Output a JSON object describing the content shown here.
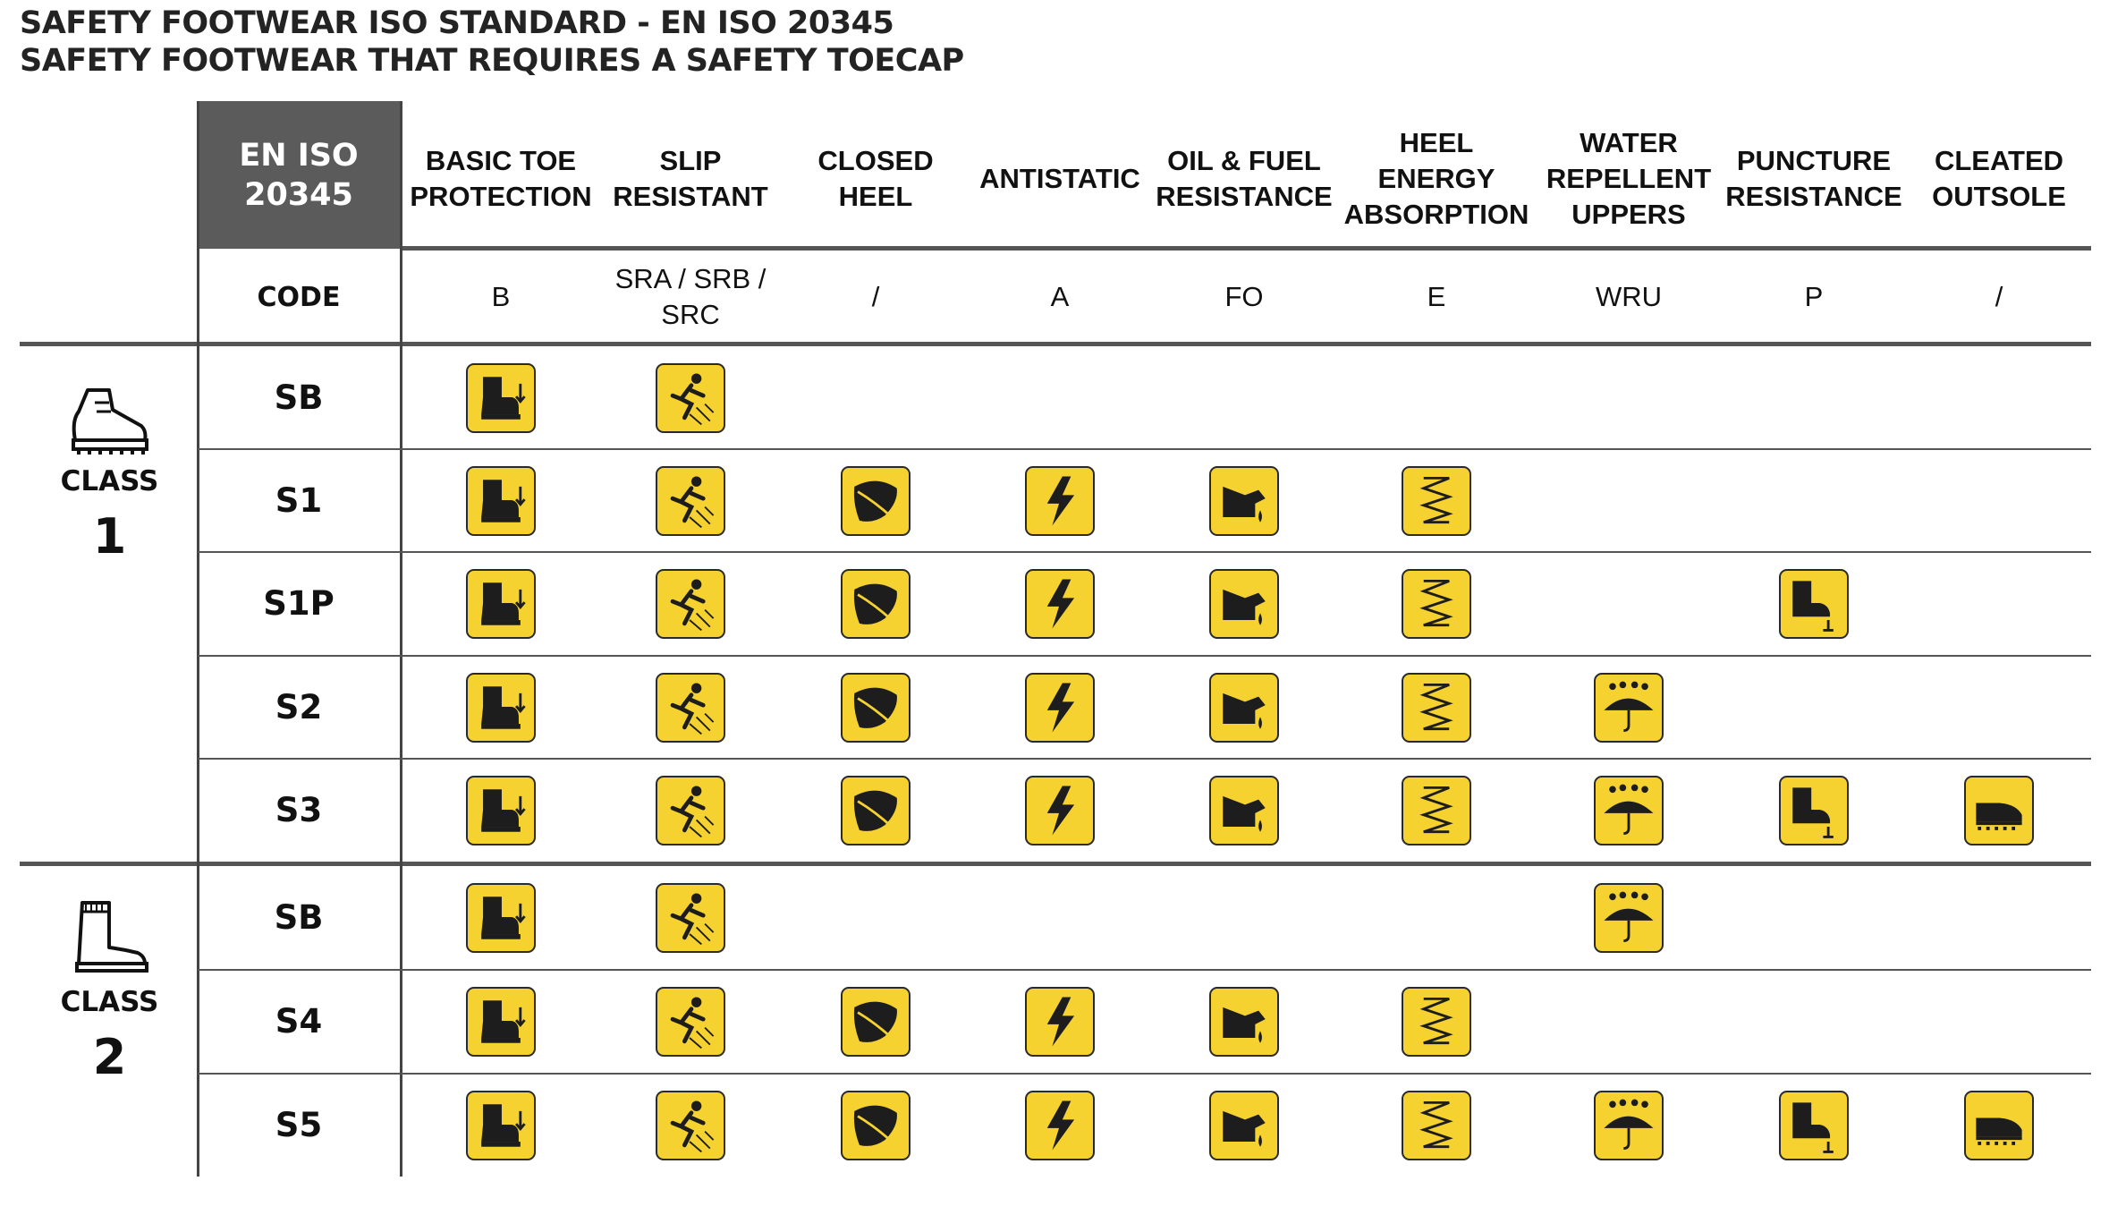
{
  "title": {
    "line1": "SAFETY FOOTWEAR ISO STANDARD - EN ISO 20345",
    "line2": "SAFETY FOOTWEAR THAT REQUIRES A SAFETY TOECAP"
  },
  "table": {
    "header_label": "EN ISO\n20345",
    "code_label": "CODE",
    "columns": [
      {
        "key": "toe",
        "name": "BASIC TOE\nPROTECTION",
        "code": "B",
        "icon": "boot-toecap-icon"
      },
      {
        "key": "slip",
        "name": "SLIP\nRESISTANT",
        "code": "SRA / SRB /\nSRC",
        "icon": "slipping-person-icon"
      },
      {
        "key": "heel",
        "name": "CLOSED\nHEEL",
        "code": "/",
        "icon": "closed-heel-icon"
      },
      {
        "key": "anti",
        "name": "ANTISTATIC",
        "code": "A",
        "icon": "lightning-bolt-icon"
      },
      {
        "key": "oil",
        "name": "OIL & FUEL\nRESISTANCE",
        "code": "FO",
        "icon": "oil-can-icon"
      },
      {
        "key": "energy",
        "name": "HEEL\nENERGY\nABSORPTION",
        "code": "E",
        "icon": "spring-icon"
      },
      {
        "key": "water",
        "name": "WATER\nREPELLENT\nUPPERS",
        "code": "WRU",
        "icon": "umbrella-rain-icon"
      },
      {
        "key": "punct",
        "name": "PUNCTURE\nRESISTANCE",
        "code": "P",
        "icon": "boot-nail-icon"
      },
      {
        "key": "cleat",
        "name": "CLEATED\nOUTSOLE",
        "code": "/",
        "icon": "cleated-shoe-icon"
      }
    ],
    "classes": [
      {
        "label": "CLASS",
        "number": "1",
        "icon": "hiking-boot-icon",
        "rows": [
          {
            "code": "SB",
            "features": [
              "toe",
              "slip"
            ]
          },
          {
            "code": "S1",
            "features": [
              "toe",
              "slip",
              "heel",
              "anti",
              "oil",
              "energy"
            ]
          },
          {
            "code": "S1P",
            "features": [
              "toe",
              "slip",
              "heel",
              "anti",
              "oil",
              "energy",
              "punct"
            ]
          },
          {
            "code": "S2",
            "features": [
              "toe",
              "slip",
              "heel",
              "anti",
              "oil",
              "energy",
              "water"
            ]
          },
          {
            "code": "S3",
            "features": [
              "toe",
              "slip",
              "heel",
              "anti",
              "oil",
              "energy",
              "water",
              "punct",
              "cleat"
            ]
          }
        ]
      },
      {
        "label": "CLASS",
        "number": "2",
        "icon": "rubber-boot-icon",
        "rows": [
          {
            "code": "SB",
            "features": [
              "toe",
              "slip",
              "water"
            ]
          },
          {
            "code": "S4",
            "features": [
              "toe",
              "slip",
              "heel",
              "anti",
              "oil",
              "energy"
            ]
          },
          {
            "code": "S5",
            "features": [
              "toe",
              "slip",
              "heel",
              "anti",
              "oil",
              "energy",
              "water",
              "punct",
              "cleat"
            ]
          }
        ]
      }
    ],
    "colors": {
      "icon_fill": "#f5d22f",
      "header_bg": "#5b5b5b",
      "rule": "#555555"
    }
  }
}
